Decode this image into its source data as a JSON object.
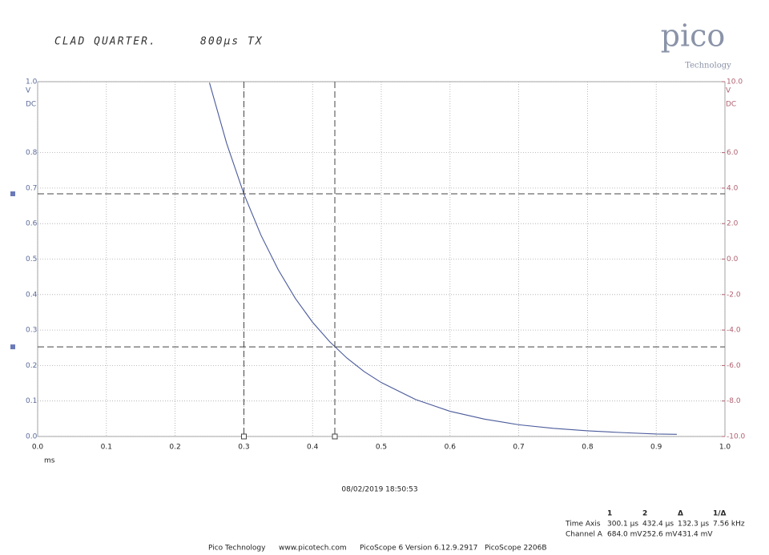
{
  "header": {
    "note": "CLAD QUARTER.",
    "note2": "800µs TX",
    "logo": "pico",
    "logo_sub": "Technology",
    "timestamp": "08/02/2019 18:50:53"
  },
  "chart_data": {
    "type": "line",
    "x_label": "ms",
    "y_unit": "V",
    "y_coupling": "DC",
    "y2_unit": "V",
    "y2_coupling": "DC",
    "xlim": [
      0,
      1
    ],
    "ylim": [
      0,
      1
    ],
    "y2lim": [
      -10,
      10
    ],
    "xticks": [
      {
        "value": 0,
        "label": "0.0"
      },
      0.1,
      0.2,
      0.3,
      0.4,
      0.5,
      0.6,
      0.7,
      0.8,
      0.9,
      {
        "value": 1,
        "label": "1.0"
      }
    ],
    "yticks": [
      {
        "value": 0,
        "label": "0.0"
      },
      0.1,
      0.2,
      0.3,
      0.4,
      0.5,
      0.6,
      0.7,
      0.8,
      {
        "value": 1,
        "label": "1.0"
      }
    ],
    "y2ticks": [
      {
        "value": -10,
        "label": "-10.0"
      },
      {
        "value": -8,
        "label": "-8.0"
      },
      {
        "value": -6,
        "label": "-6.0"
      },
      {
        "value": -4,
        "label": "-4.0"
      },
      {
        "value": -2,
        "label": "-2.0"
      },
      {
        "value": 0,
        "label": "0.0"
      },
      {
        "value": 2,
        "label": "2.0"
      },
      {
        "value": 4,
        "label": "4.0"
      },
      {
        "value": 6,
        "label": "6.0"
      },
      {
        "value": 10,
        "label": "10.0"
      }
    ],
    "grid": true,
    "series": [
      {
        "name": "Channel A",
        "color": "#4a5a9a",
        "x": [
          0.25,
          0.275,
          0.3,
          0.325,
          0.35,
          0.375,
          0.4,
          0.425,
          0.45,
          0.475,
          0.5,
          0.55,
          0.6,
          0.65,
          0.7,
          0.75,
          0.8,
          0.85,
          0.9,
          0.93
        ],
        "values": [
          0.997,
          0.826,
          0.684,
          0.567,
          0.47,
          0.389,
          0.322,
          0.267,
          0.221,
          0.183,
          0.152,
          0.104,
          0.071,
          0.049,
          0.033,
          0.023,
          0.016,
          0.011,
          0.007,
          0.006
        ]
      }
    ],
    "cursors": {
      "x": [
        0.3001,
        0.4324
      ],
      "y": [
        0.684,
        0.2526
      ]
    }
  },
  "measurements": {
    "header": [
      "1",
      "2",
      "Δ",
      "1/Δ"
    ],
    "rows": [
      [
        "Time Axis",
        "300.1 µs",
        "432.4 µs",
        "132.3 µs",
        "7.56 kHz"
      ],
      [
        "Channel A",
        "684.0 mV",
        "252.6 mV",
        "431.4 mV"
      ]
    ]
  },
  "footer": [
    "Pico Technology",
    "www.picotech.com",
    "PicoScope 6 Version 6.12.9.2917",
    "PicoScope 2206B"
  ]
}
